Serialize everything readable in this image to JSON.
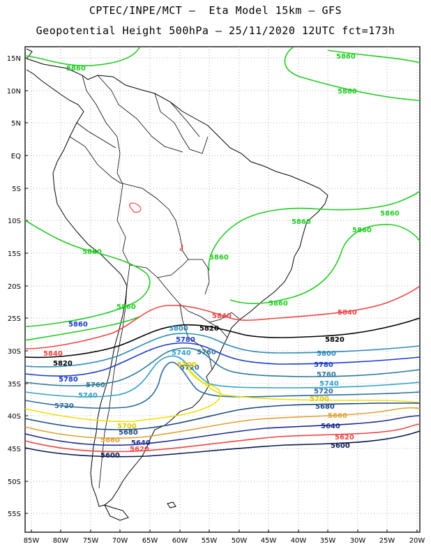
{
  "header": {
    "line1": "CPTEC/INPE/MCT –  Eta Model 15km – GFS",
    "line2": "Geopotential Height 500hPa – 25/11/2020 12UTC fct=173h"
  },
  "axes": {
    "lat_labels": [
      "15N",
      "10N",
      "5N",
      "EQ",
      "5S",
      "10S",
      "15S",
      "20S",
      "25S",
      "30S",
      "35S",
      "40S",
      "45S",
      "50S",
      "55S"
    ],
    "lon_labels": [
      "85W",
      "80W",
      "75W",
      "70W",
      "65W",
      "60W",
      "55W",
      "50W",
      "45W",
      "40W",
      "35W",
      "30W",
      "25W",
      "20W"
    ]
  },
  "contours": [
    {
      "level": "5860",
      "color": "#22cc22"
    },
    {
      "level": "5840",
      "color": "#ee4444"
    },
    {
      "level": "5820",
      "color": "#000000"
    },
    {
      "level": "5800",
      "color": "#2a8ab8"
    },
    {
      "level": "5780",
      "color": "#1a3ccc"
    },
    {
      "level": "5760",
      "color": "#2a7898"
    },
    {
      "level": "5740",
      "color": "#2ea0c8"
    },
    {
      "level": "5720",
      "color": "#2a6aa0"
    },
    {
      "level": "5700",
      "color": "#f0e000"
    },
    {
      "level": "5680",
      "color": "#1a4a80"
    },
    {
      "level": "5660",
      "color": "#e0a030"
    },
    {
      "level": "5640",
      "color": "#1a2a90"
    },
    {
      "level": "5620",
      "color": "#ee4444"
    },
    {
      "level": "5600",
      "color": "#0a1a50"
    }
  ]
}
